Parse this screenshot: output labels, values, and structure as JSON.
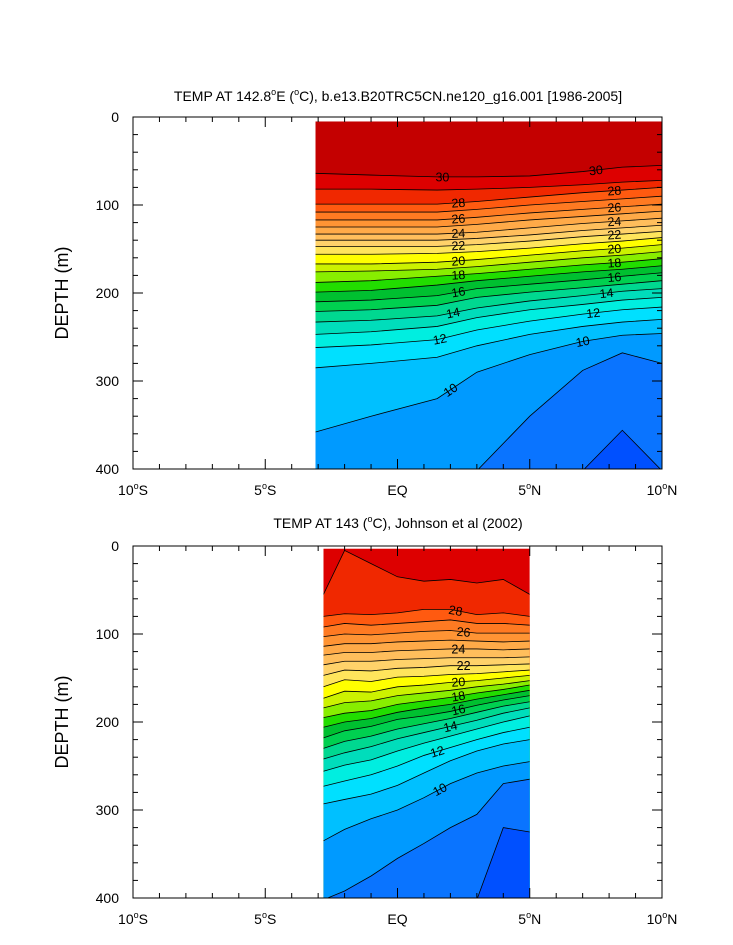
{
  "chart_data": [
    {
      "type": "contour",
      "title": "TEMP AT 142.8°E (°C), b.e13.B20TRC5CN.ne120_g16.001 [1986-2005]",
      "ylabel": "DEPTH (m)",
      "xlim": [
        -10,
        10
      ],
      "ylim": [
        400,
        0
      ],
      "x_ticks": [
        -10,
        -5,
        0,
        5,
        10
      ],
      "x_tick_labels": [
        "10°S",
        "5°S",
        "EQ",
        "5°N",
        "10°N"
      ],
      "y_ticks": [
        0,
        100,
        200,
        300,
        400
      ],
      "y_tick_labels": [
        "0",
        "100",
        "200",
        "300",
        "400"
      ],
      "data_xrange": [
        -3.1,
        10
      ],
      "data_ytop": 5,
      "isotherm_depths": {
        "x": [
          -3.1,
          -1,
          1.5,
          3,
          5,
          7,
          8.5,
          10
        ],
        "lines": [
          {
            "t": 30,
            "d": [
              64,
              66,
              68,
              68,
              67,
              62,
              57,
              55
            ],
            "label": "30",
            "lx": [
              1.7,
              7.5
            ]
          },
          {
            "t": 29,
            "d": [
              82,
              82,
              83,
              82,
              80,
              77,
              74,
              72
            ]
          },
          {
            "t": 28,
            "d": [
              99,
              99,
              99,
              96,
              91,
              86,
              83,
              80
            ],
            "label": "28",
            "lx": [
              2.3,
              8.2
            ]
          },
          {
            "t": 27,
            "d": [
              108,
              108,
              108,
              105,
              100,
              96,
              93,
              90
            ]
          },
          {
            "t": 26,
            "d": [
              117,
              117,
              117,
              114,
              109,
              105,
              102,
              99
            ],
            "label": "26",
            "lx": [
              2.3,
              8.2
            ]
          },
          {
            "t": 25,
            "d": [
              125,
              125,
              125,
              122,
              117,
              113,
              110,
              107
            ]
          },
          {
            "t": 24,
            "d": [
              133,
              133,
              133,
              131,
              126,
              121,
              118,
              115
            ],
            "label": "24",
            "lx": [
              2.3,
              8.2
            ]
          },
          {
            "t": 23,
            "d": [
              140,
              140,
              140,
              138,
              134,
              129,
              126,
              123
            ]
          },
          {
            "t": 22,
            "d": [
              147,
              147,
              147,
              145,
              141,
              136,
              133,
              130
            ],
            "label": "22",
            "lx": [
              2.3,
              8.2
            ]
          },
          {
            "t": 21,
            "d": [
              156,
              156,
              155,
              153,
              149,
              144,
              141,
              137
            ]
          },
          {
            "t": 20,
            "d": [
              167,
              167,
              165,
              162,
              157,
              152,
              149,
              145
            ],
            "label": "20",
            "lx": [
              2.3,
              8.2
            ]
          },
          {
            "t": 19,
            "d": [
              176,
              175,
              173,
              170,
              165,
              160,
              157,
              153
            ]
          },
          {
            "t": 18,
            "d": [
              188,
              186,
              181,
              178,
              173,
              168,
              165,
              161
            ],
            "label": "18",
            "lx": [
              2.3,
              8.2
            ]
          },
          {
            "t": 17,
            "d": [
              199,
              197,
              191,
              186,
              181,
              176,
              173,
              169
            ]
          },
          {
            "t": 16,
            "d": [
              210,
              208,
              203,
              195,
              190,
              185,
              181,
              177
            ],
            "label": "16",
            "lx": [
              2.3,
              8.2
            ]
          },
          {
            "t": 15,
            "d": [
              221,
              219,
              214,
              205,
              199,
              194,
              190,
              186
            ]
          },
          {
            "t": 14,
            "d": [
              233,
              231,
              226,
              217,
              209,
              203,
              198,
              195
            ],
            "label": "14",
            "lx": [
              2.1,
              7.9
            ]
          },
          {
            "t": 13,
            "d": [
              247,
              244,
              238,
              228,
              219,
              213,
              208,
              205
            ]
          },
          {
            "t": 12,
            "d": [
              262,
              259,
              253,
              242,
              232,
              224,
              219,
              216
            ],
            "label": "12",
            "lx": [
              1.6,
              7.4
            ]
          },
          {
            "t": 11,
            "d": [
              285,
              280,
              273,
              260,
              247,
              238,
              233,
              230
            ]
          },
          {
            "t": 10,
            "d": [
              358,
              340,
              320,
              290,
              270,
              255,
              248,
              246
            ],
            "label": "10",
            "lx": [
              2.0,
              7.0
            ]
          },
          {
            "t": 9,
            "d": [
              402,
              402,
              402,
              402,
              340,
              288,
              268,
              280
            ]
          },
          {
            "t": 8,
            "d": [
              402,
              402,
              402,
              402,
              402,
              402,
              356,
              402
            ]
          }
        ]
      },
      "label_depths": {
        "30": [
          68,
          59
        ],
        "28": [
          99,
          84
        ],
        "26": [
          117,
          103
        ],
        "24": [
          133,
          118
        ],
        "22": [
          147,
          132
        ],
        "20": [
          160,
          146
        ],
        "18": [
          176,
          161
        ],
        "16": [
          193,
          177
        ],
        "14": [
          216,
          194
        ],
        "12": [
          252,
          220
        ],
        "10": [
          327,
          241
        ]
      }
    },
    {
      "type": "contour",
      "title": "TEMP AT 143 (°C), Johnson et al (2002)",
      "ylabel": "DEPTH (m)",
      "xlim": [
        -10,
        10
      ],
      "ylim": [
        400,
        0
      ],
      "x_ticks": [
        -10,
        -5,
        0,
        5,
        10
      ],
      "x_tick_labels": [
        "10°S",
        "5°S",
        "EQ",
        "5°N",
        "10°N"
      ],
      "y_ticks": [
        0,
        100,
        200,
        300,
        400
      ],
      "y_tick_labels": [
        "0",
        "100",
        "200",
        "300",
        "400"
      ],
      "data_xrange": [
        -2.8,
        5
      ],
      "data_ytop": 3,
      "isotherm_depths": {
        "x": [
          -2.8,
          -2,
          -1,
          0,
          1,
          2,
          3,
          4,
          5
        ],
        "lines": [
          {
            "t": 29,
            "d": [
              55,
              5,
              20,
              35,
              40,
              38,
              42,
              38,
              55
            ]
          },
          {
            "t": 28,
            "d": [
              80,
              77,
              78,
              76,
              72,
              72,
              78,
              76,
              80
            ],
            "label": "28",
            "lx": [
              2.2
            ]
          },
          {
            "t": 27,
            "d": [
              92,
              88,
              90,
              88,
              86,
              84,
              88,
              88,
              90
            ]
          },
          {
            "t": 26,
            "d": [
              103,
              100,
              101,
              99,
              97,
              96,
              99,
              99,
              99
            ],
            "label": "26",
            "lx": [
              2.5
            ]
          },
          {
            "t": 25,
            "d": [
              114,
              111,
              111,
              109,
              108,
              107,
              108,
              109,
              108
            ]
          },
          {
            "t": 24,
            "d": [
              124,
              121,
              121,
              119,
              118,
              117,
              117,
              118,
              117
            ],
            "label": "24",
            "lx": [
              2.3
            ]
          },
          {
            "t": 23,
            "d": [
              135,
              131,
              131,
              129,
              128,
              127,
              127,
              127,
              126
            ]
          },
          {
            "t": 22,
            "d": [
              147,
              141,
              142,
              139,
              138,
              136,
              136,
              135,
              134
            ],
            "label": "22",
            "lx": [
              2.5
            ]
          },
          {
            "t": 21,
            "d": [
              160,
              152,
              154,
              149,
              148,
              146,
              145,
              143,
              141
            ]
          },
          {
            "t": 20,
            "d": [
              173,
              165,
              166,
              160,
              158,
              155,
              153,
              150,
              147
            ],
            "label": "20",
            "lx": [
              2.3
            ]
          },
          {
            "t": 19,
            "d": [
              184,
              178,
              176,
              170,
              167,
              164,
              160,
              157,
              153
            ]
          },
          {
            "t": 18,
            "d": [
              195,
              190,
              187,
              180,
              176,
              172,
              167,
              163,
              158
            ],
            "label": "18",
            "lx": [
              2.3
            ]
          },
          {
            "t": 17,
            "d": [
              206,
              200,
              196,
              189,
              184,
              180,
              174,
              169,
              164
            ]
          },
          {
            "t": 16,
            "d": [
              218,
              210,
              205,
              197,
              193,
              188,
              181,
              175,
              170
            ],
            "label": "16",
            "lx": [
              2.3
            ]
          },
          {
            "t": 15,
            "d": [
              230,
              222,
              216,
              208,
              202,
              196,
              189,
              182,
              177
            ]
          },
          {
            "t": 14,
            "d": [
              242,
              235,
              228,
              219,
              212,
              205,
              198,
              190,
              184
            ],
            "label": "14",
            "lx": [
              2.0
            ]
          },
          {
            "t": 13,
            "d": [
              256,
              249,
              243,
              233,
              224,
              216,
              208,
              200,
              193
            ]
          },
          {
            "t": 12,
            "d": [
              273,
              267,
              260,
              250,
              238,
              229,
              220,
              212,
              206
            ],
            "label": "12",
            "lx": [
              1.5
            ]
          },
          {
            "t": 11,
            "d": [
              293,
              288,
              282,
              272,
              258,
              244,
              233,
              225,
              220
            ]
          },
          {
            "t": 10,
            "d": [
              335,
              322,
              310,
              300,
              286,
              270,
              258,
              250,
              245
            ],
            "label": "10",
            "lx": [
              1.6
            ]
          },
          {
            "t": 9,
            "d": [
              402,
              392,
              375,
              355,
              338,
              320,
              305,
              270,
              265
            ]
          },
          {
            "t": 8,
            "d": [
              402,
              402,
              402,
              402,
              402,
              402,
              402,
              320,
              325
            ]
          }
        ]
      },
      "label_depths": {
        "28": [
          71
        ],
        "26": [
          102
        ],
        "24": [
          129
        ],
        "22": [
          149
        ],
        "20": [
          168
        ],
        "18": [
          181
        ],
        "16": [
          194
        ],
        "14": [
          210
        ],
        "12": [
          245
        ],
        "10": [
          325
        ]
      }
    }
  ],
  "palette": [
    "#7a1fe6",
    "#0a28ff",
    "#0050ff",
    "#0a74ff",
    "#009aff",
    "#00c0ff",
    "#00e0ff",
    "#00eee0",
    "#00ddbb",
    "#00d890",
    "#00d050",
    "#00c030",
    "#22dd00",
    "#88ee00",
    "#ccf200",
    "#ffff00",
    "#ffe55c",
    "#ffd26a",
    "#ffbe5c",
    "#ffaa48",
    "#ff9434",
    "#ff7a22",
    "#ff5a10",
    "#f02800",
    "#dd0000",
    "#c40000"
  ]
}
